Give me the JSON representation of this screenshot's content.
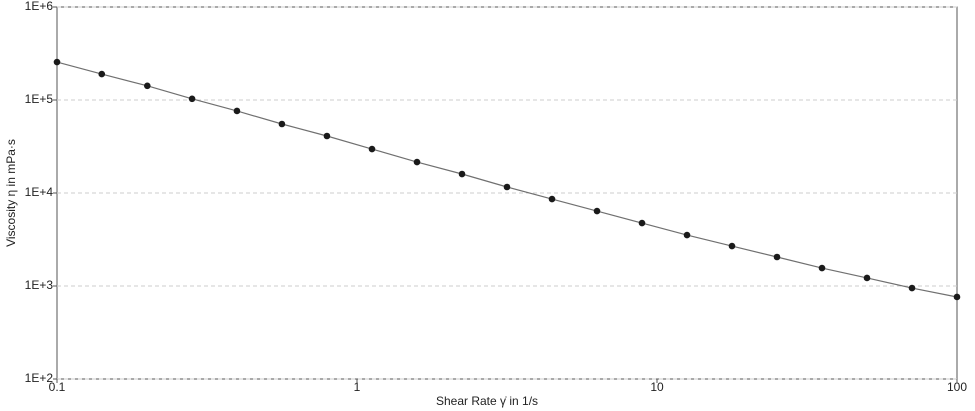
{
  "chart_data": {
    "type": "line",
    "xlabel": "Shear Rate γ̇ in 1/s",
    "ylabel": "Viscosity η in mPa·s",
    "xscale": "log",
    "yscale": "log",
    "x": [
      0.1,
      0.141,
      0.2,
      0.282,
      0.398,
      0.562,
      0.794,
      1.122,
      1.585,
      2.239,
      3.162,
      4.467,
      6.31,
      8.913,
      12.59,
      17.78,
      25.12,
      35.48,
      50.12,
      70.79,
      100
    ],
    "series": [
      {
        "color": "#1a1a1a",
        "line_color": "#707070",
        "values": [
          256000,
          190000,
          142000,
          103000,
          76200,
          55200,
          41000,
          29700,
          21500,
          16000,
          11600,
          8610,
          6400,
          4750,
          3530,
          2690,
          2050,
          1560,
          1220,
          951,
          762
        ]
      }
    ],
    "xlim": [
      0.1,
      100
    ],
    "xticks": [
      0.1,
      1,
      10,
      100
    ],
    "ylim": [
      100,
      1000000
    ],
    "yticks": [
      {
        "value": 100,
        "label": "1E+2"
      },
      {
        "value": 1000,
        "label": "1E+3"
      },
      {
        "value": 10000,
        "label": "1E+4"
      },
      {
        "value": 100000,
        "label": "1E+5"
      },
      {
        "value": 1000000,
        "label": "1E+6"
      }
    ],
    "grid": true
  }
}
